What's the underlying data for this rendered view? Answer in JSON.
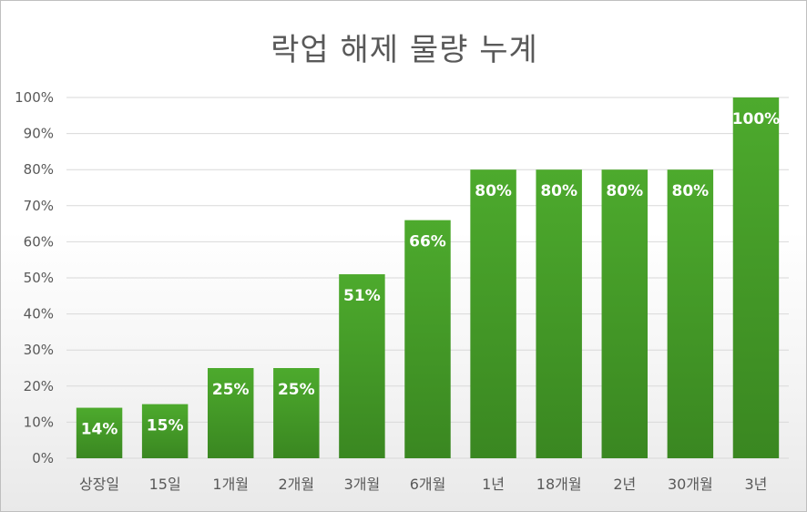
{
  "chart_data": {
    "type": "bar",
    "title": "락업 해제 물량 누계",
    "categories": [
      "상장일",
      "15일",
      "1개월",
      "2개월",
      "3개월",
      "6개월",
      "1년",
      "18개월",
      "2년",
      "30개월",
      "3년"
    ],
    "values": [
      14,
      15,
      25,
      25,
      51,
      66,
      80,
      80,
      80,
      80,
      100
    ],
    "data_labels": [
      "14%",
      "15%",
      "25%",
      "25%",
      "51%",
      "66%",
      "80%",
      "80%",
      "80%",
      "80%",
      "100%"
    ],
    "y_ticks": [
      "0%",
      "10%",
      "20%",
      "30%",
      "40%",
      "50%",
      "60%",
      "70%",
      "80%",
      "90%",
      "100%"
    ],
    "ylim": [
      0,
      100
    ],
    "grid": true,
    "legend": "none",
    "colors": {
      "bar_top": "#4daa2d",
      "bar_bottom": "#3b8a22",
      "grid": "#d9d9d9",
      "axis_text": "#595959"
    }
  }
}
